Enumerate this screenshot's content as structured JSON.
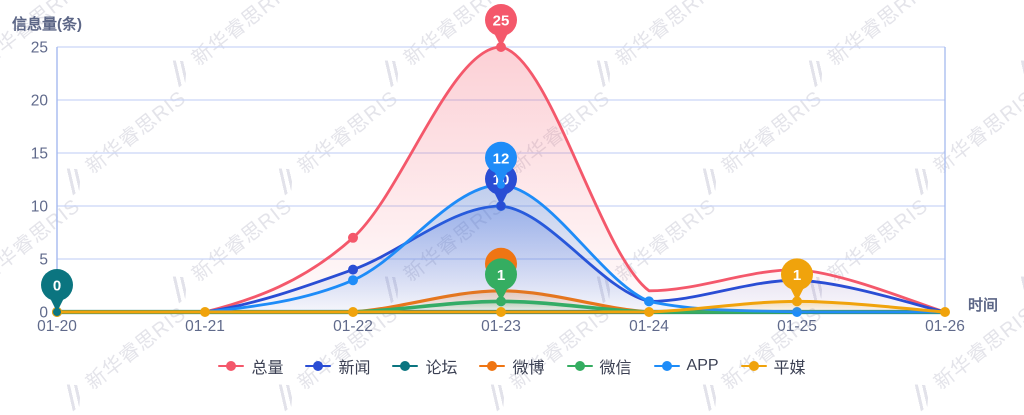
{
  "watermark": {
    "text": "新华睿思RIS"
  },
  "theme": {
    "background": "#ffffff",
    "grid_color": "#c9d5f7",
    "axis_color": "#a5baef",
    "tick_color": "#606a8b",
    "legend_text_color": "#3b4053",
    "pin_text_color": "#ffffff"
  },
  "chart_data": {
    "type": "area",
    "title": "",
    "ylabel": "信息量(条)",
    "xlabel": "时间",
    "ylim": [
      0,
      25
    ],
    "y_ticks": [
      0,
      5,
      10,
      15,
      20,
      25
    ],
    "grid": true,
    "legend_position": "bottom",
    "categories": [
      "01-20",
      "01-21",
      "01-22",
      "01-23",
      "01-24",
      "01-25",
      "01-26"
    ],
    "series": [
      {
        "name": "总量",
        "color": "#f4586b",
        "values": [
          0,
          0,
          7,
          25,
          2,
          4,
          0
        ],
        "line_width": 2.8,
        "visible_dots": [
          2,
          3
        ],
        "max_label": {
          "category": "01-23",
          "value": 25
        }
      },
      {
        "name": "新闻",
        "color": "#2a4dd4",
        "values": [
          0,
          0,
          4,
          10,
          1,
          3,
          0
        ],
        "line_width": 2.8,
        "visible_dots": [
          2,
          3
        ],
        "max_label": {
          "category": "01-23",
          "value": 10
        }
      },
      {
        "name": "论坛",
        "color": "#0b7580",
        "values": [
          0,
          0,
          0,
          0,
          0,
          0,
          0
        ],
        "line_width": 4.2,
        "visible_dots": [
          0
        ],
        "max_label": {
          "category": "01-20",
          "value": 0
        }
      },
      {
        "name": "微博",
        "color": "#ef7513",
        "values": [
          0,
          0,
          0,
          2,
          0,
          0,
          0
        ],
        "line_width": 3.2,
        "visible_dots": [
          3
        ],
        "max_label": {
          "category": "01-23",
          "value": 2
        }
      },
      {
        "name": "微信",
        "color": "#35ad61",
        "values": [
          0,
          0,
          0,
          1,
          0,
          0,
          0
        ],
        "line_width": 3.6,
        "visible_dots": [
          3
        ],
        "max_label": {
          "category": "01-23",
          "value": 1
        }
      },
      {
        "name": "APP",
        "color": "#1e8cf8",
        "values": [
          0,
          0,
          3,
          12,
          1,
          0,
          0
        ],
        "line_width": 2.8,
        "visible_dots": [
          2,
          3,
          4,
          5
        ],
        "max_label": {
          "category": "01-23",
          "value": 12
        }
      },
      {
        "name": "平媒",
        "color": "#f0a30c",
        "values": [
          0,
          0,
          0,
          0,
          0,
          1,
          0
        ],
        "line_width": 3.0,
        "visible_dots": [
          0,
          1,
          2,
          3,
          4,
          5,
          6
        ],
        "max_label": {
          "category": "01-25",
          "value": 1
        }
      }
    ]
  }
}
